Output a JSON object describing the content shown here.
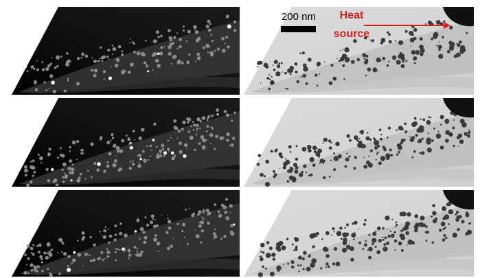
{
  "scale_bar": {
    "label": "200 nm"
  },
  "annotation": {
    "lines": [
      "Heat",
      "source"
    ]
  }
}
